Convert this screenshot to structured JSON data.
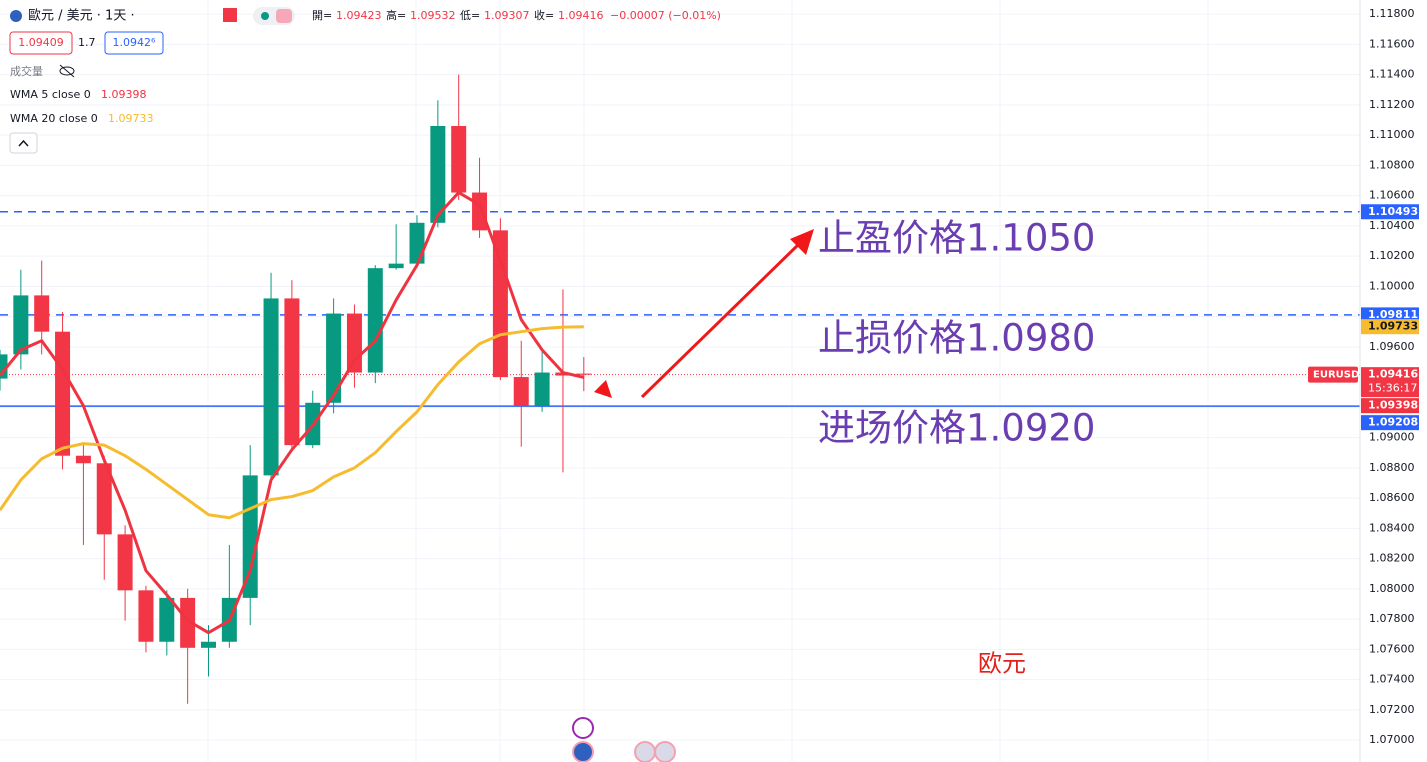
{
  "chart_data": {
    "type": "candlestick",
    "header": {
      "symbol": "歐元 / 美元 · 1天 ·",
      "ohlc": [
        {
          "label": "開=",
          "value": "1.09423"
        },
        {
          "label": "高=",
          "value": "1.09532"
        },
        {
          "label": "低=",
          "value": "1.09307"
        },
        {
          "label": "收=",
          "value": "1.09416"
        }
      ],
      "change": "−0.00007 (−0.01%)",
      "bid": "1.09409",
      "spread": "1.7",
      "ask": "1.0942⁶",
      "volume_label": "成交量"
    },
    "categories": [
      null,
      null,
      null,
      null,
      null,
      null,
      null,
      null,
      null,
      null,
      null,
      null,
      null,
      null,
      null,
      null,
      null,
      null,
      null,
      null,
      null,
      null,
      null,
      null,
      null,
      null,
      null,
      null,
      null
    ],
    "candles": {
      "up_color": "#089981",
      "down_color": "#f23645",
      "open": [
        1.0939,
        1.0955,
        1.0994,
        1.097,
        1.0888,
        1.0883,
        1.0836,
        1.0799,
        1.0765,
        1.0794,
        1.0761,
        1.0765,
        1.0794,
        1.0875,
        1.0992,
        1.0895,
        1.0923,
        1.0982,
        1.0943,
        1.1012,
        1.1015,
        1.1042,
        1.1106,
        1.1062,
        1.1037,
        1.094,
        1.0921,
        1.0943,
        1.09423
      ],
      "high": [
        1.0958,
        1.1011,
        1.1017,
        1.0983,
        1.0895,
        1.0888,
        1.0842,
        1.0802,
        1.0799,
        1.08,
        1.0776,
        1.0829,
        1.0895,
        1.1009,
        1.1004,
        1.0931,
        1.0992,
        1.0988,
        1.1014,
        1.1041,
        1.1047,
        1.1123,
        1.114,
        1.1085,
        1.1045,
        1.0964,
        1.0957,
        1.0998,
        1.09532
      ],
      "low": [
        1.0931,
        1.0945,
        1.0955,
        1.0879,
        1.0829,
        1.0806,
        1.0779,
        1.0758,
        1.0756,
        1.0724,
        1.0742,
        1.0761,
        1.0776,
        1.0873,
        1.0892,
        1.0893,
        1.0916,
        1.0933,
        1.0936,
        1.1011,
        1.1012,
        1.1039,
        1.1057,
        1.1032,
        1.0938,
        1.0894,
        1.0917,
        1.0877,
        1.09307
      ],
      "close": [
        1.0955,
        1.0994,
        1.097,
        1.0888,
        1.0883,
        1.0836,
        1.0799,
        1.0765,
        1.0794,
        1.0761,
        1.0765,
        1.0794,
        1.0875,
        1.0992,
        1.0895,
        1.0923,
        1.0982,
        1.0943,
        1.1012,
        1.1015,
        1.1042,
        1.1106,
        1.1062,
        1.1037,
        1.094,
        1.0921,
        1.0943,
        1.0941,
        1.09416
      ]
    },
    "series": [
      {
        "name": "WMA 5 close 0",
        "color": "#ef3340",
        "values": [
          1.0941,
          1.0958,
          1.0964,
          1.0945,
          1.0921,
          1.0885,
          1.0852,
          1.0812,
          1.0796,
          1.0779,
          1.0771,
          1.0779,
          1.0812,
          1.0872,
          1.0892,
          1.0908,
          1.0928,
          1.0951,
          1.0964,
          1.0991,
          1.1014,
          1.1047,
          1.1062,
          1.1054,
          1.1017,
          1.0978,
          1.0958,
          1.0943,
          1.09398
        ]
      },
      {
        "name": "WMA 20 close 0",
        "color": "#f7bb2e",
        "values": [
          1.0852,
          1.0872,
          1.0886,
          1.0893,
          1.0896,
          1.0895,
          1.0888,
          1.0879,
          1.0869,
          1.0859,
          1.0849,
          1.0847,
          1.0853,
          1.0859,
          1.0861,
          1.0865,
          1.0874,
          1.088,
          1.089,
          1.0904,
          1.0917,
          1.0935,
          1.095,
          1.0962,
          1.0968,
          1.097,
          1.0972,
          1.0973,
          1.09733
        ]
      }
    ],
    "levels": [
      {
        "value": 1.10493,
        "color": "#2962ff",
        "style": "dashed"
      },
      {
        "value": 1.09811,
        "color": "#2962ff",
        "style": "dashed"
      },
      {
        "value": 1.09208,
        "color": "#2962ff",
        "style": "solid"
      }
    ],
    "price_line": {
      "symbol": "EURUSD",
      "value": 1.09416,
      "countdown": "15:36:17",
      "color": "#f23645"
    },
    "ylim": [
      1.06855,
      1.11893
    ],
    "yticks": [
      {
        "value": 1.118,
        "label": "1.11800"
      },
      {
        "value": 1.116,
        "label": "1.11600"
      },
      {
        "value": 1.114,
        "label": "1.11400"
      },
      {
        "value": 1.112,
        "label": "1.11200"
      },
      {
        "value": 1.11,
        "label": "1.11000"
      },
      {
        "value": 1.108,
        "label": "1.10800"
      },
      {
        "value": 1.106,
        "label": "1.10600"
      },
      {
        "value": 1.104,
        "label": "1.10400"
      },
      {
        "value": 1.102,
        "label": "1.10200"
      },
      {
        "value": 1.1,
        "label": "1.10000"
      },
      {
        "value": 1.098,
        "label": "1.09800"
      },
      {
        "value": 1.096,
        "label": "1.09600"
      },
      {
        "value": 1.094,
        "label": "1.09400"
      },
      {
        "value": 1.092,
        "label": "1.09200"
      },
      {
        "value": 1.09,
        "label": "1.09000"
      },
      {
        "value": 1.088,
        "label": "1.08800"
      },
      {
        "value": 1.086,
        "label": "1.08600"
      },
      {
        "value": 1.084,
        "label": "1.08400"
      },
      {
        "value": 1.082,
        "label": "1.08200"
      },
      {
        "value": 1.08,
        "label": "1.08000"
      },
      {
        "value": 1.078,
        "label": "1.07800"
      },
      {
        "value": 1.076,
        "label": "1.07600"
      },
      {
        "value": 1.074,
        "label": "1.07400"
      },
      {
        "value": 1.072,
        "label": "1.07200"
      },
      {
        "value": 1.07,
        "label": "1.07000"
      }
    ],
    "grid": true,
    "annotations": [
      {
        "text": "止盈价格1.1050"
      },
      {
        "text": "止损价格1.0980"
      },
      {
        "text": "进场价格1.0920"
      },
      {
        "text": "欧元"
      }
    ]
  }
}
